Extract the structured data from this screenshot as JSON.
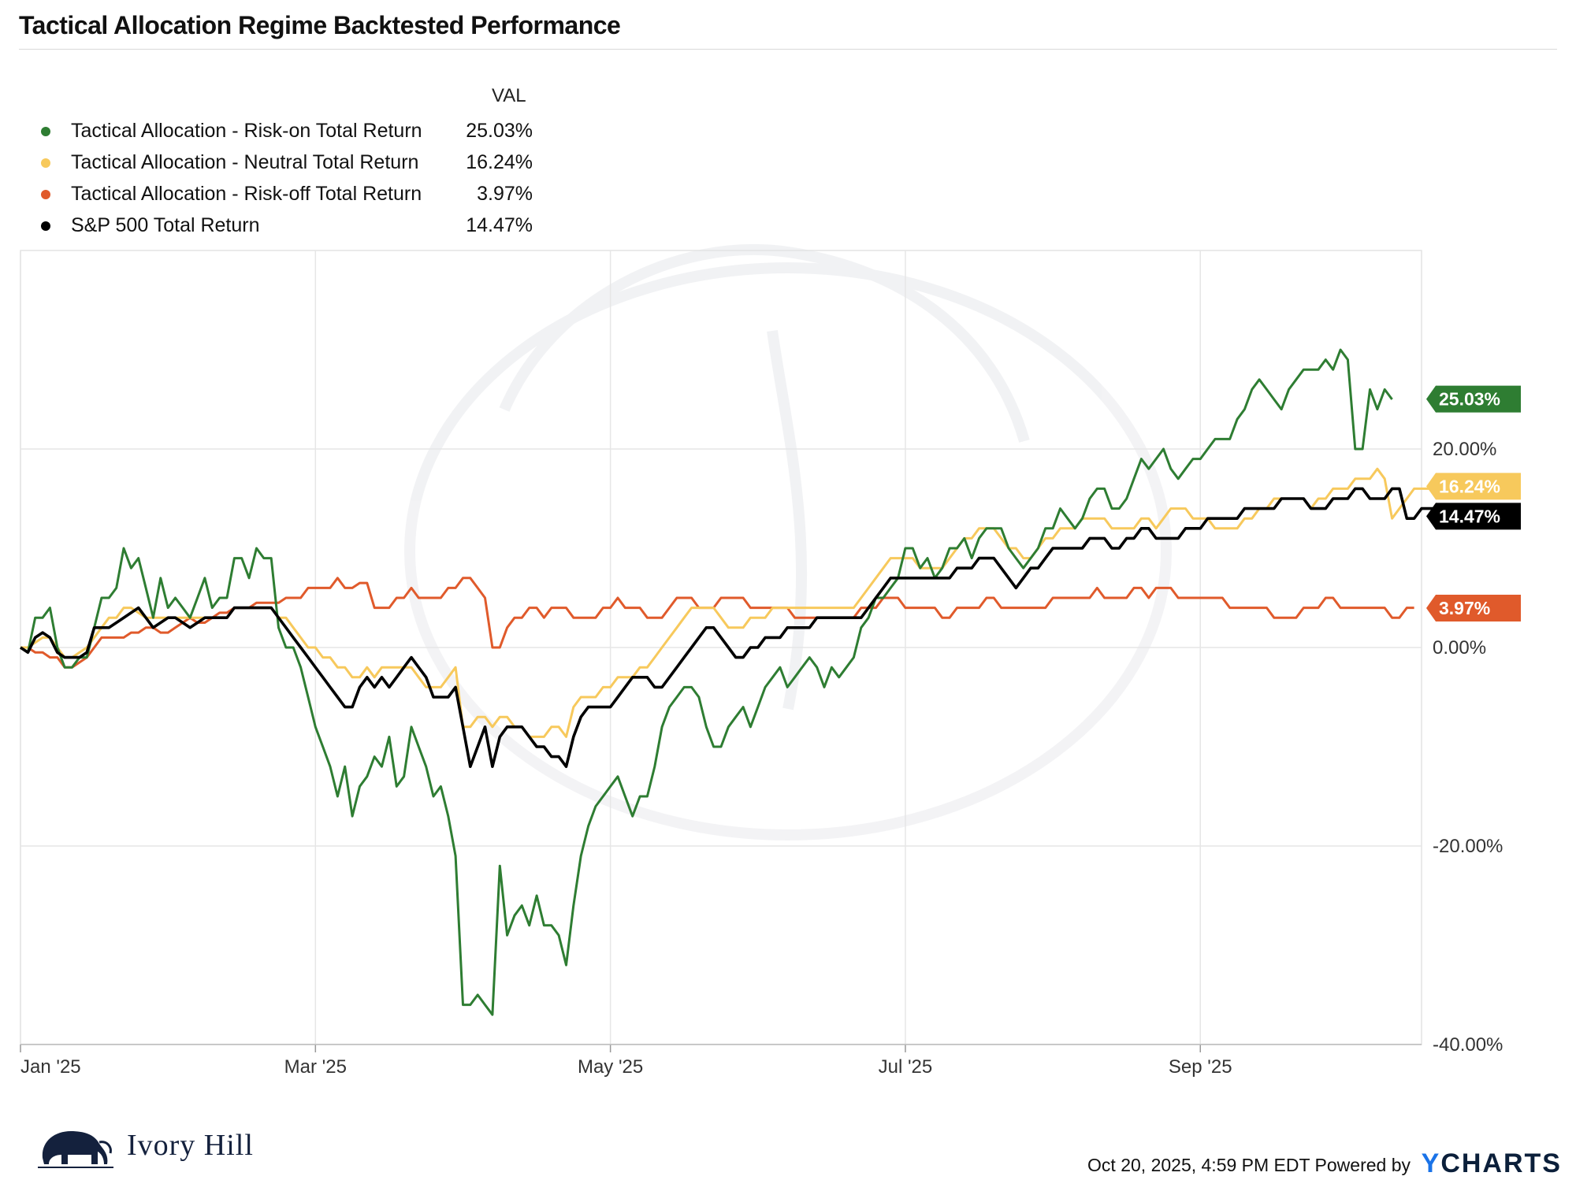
{
  "header": {
    "title": "Tactical Allocation Regime Backtested Performance"
  },
  "legend": {
    "value_header": "VAL",
    "items": [
      {
        "name": "Tactical Allocation - Risk-on Total Return",
        "value": "25.03%",
        "color": "#2e7d32"
      },
      {
        "name": "Tactical Allocation - Neutral Total Return",
        "value": "16.24%",
        "color": "#f7c95c"
      },
      {
        "name": "Tactical Allocation - Risk-off Total Return",
        "value": "3.97%",
        "color": "#e05a2b"
      },
      {
        "name": "S&P 500 Total Return",
        "value": "14.47%",
        "color": "#000000"
      }
    ]
  },
  "chart_data": {
    "type": "line",
    "title": "Tactical Allocation Regime Backtested Performance",
    "xlabel": "",
    "ylabel": "",
    "x_ticks": [
      "Jan '25",
      "Mar '25",
      "May '25",
      "Jul '25",
      "Sep '25"
    ],
    "x_tick_index": [
      0,
      40,
      80,
      120,
      160
    ],
    "y_ticks": [
      "-40.00%",
      "-20.00%",
      "0.00%",
      "20.00%"
    ],
    "y_tick_values": [
      -40,
      -20,
      0,
      20
    ],
    "ylim": [
      -40.0,
      40.0
    ],
    "xlim": [
      0,
      190
    ],
    "grid": true,
    "series": [
      {
        "name": "Tactical Allocation - Risk-on Total Return",
        "color": "#2e7d32",
        "end_label": "25.03%",
        "values": [
          0,
          -0.5,
          3,
          3,
          4,
          0,
          -2,
          -2,
          -1,
          -1,
          2,
          5,
          5,
          6,
          10,
          8,
          9,
          6,
          3,
          7,
          4,
          5,
          4,
          3,
          5,
          7,
          4,
          5,
          5,
          9,
          9,
          7,
          10,
          9,
          9,
          2,
          0,
          0,
          -2,
          -5,
          -8,
          -10,
          -12,
          -15,
          -12,
          -17,
          -14,
          -13,
          -11,
          -12,
          -9,
          -14,
          -13,
          -8,
          -10,
          -12,
          -15,
          -14,
          -17,
          -21,
          -36,
          -36,
          -35,
          -36,
          -37,
          -22,
          -29,
          -27,
          -26,
          -28,
          -25,
          -28,
          -28,
          -29,
          -32,
          -26,
          -21,
          -18,
          -16,
          -15,
          -14,
          -13,
          -15,
          -17,
          -15,
          -15,
          -12,
          -8,
          -6,
          -5,
          -4,
          -4,
          -5,
          -8,
          -10,
          -10,
          -8,
          -7,
          -6,
          -8,
          -6,
          -4,
          -3,
          -2,
          -4,
          -3,
          -2,
          -1,
          -2,
          -4,
          -2,
          -3,
          -2,
          -1,
          2,
          3,
          5,
          5,
          6,
          7,
          10,
          10,
          8,
          9,
          7,
          8,
          10,
          10,
          11,
          9,
          11,
          12,
          12,
          12,
          10,
          9,
          8,
          9,
          10,
          12,
          12,
          14,
          13,
          12,
          13,
          15,
          16,
          16,
          14,
          14,
          15,
          17,
          19,
          18,
          19,
          20,
          18,
          17,
          18,
          19,
          19,
          20,
          21,
          21,
          21,
          23,
          24,
          26,
          27,
          26,
          25,
          24,
          26,
          27,
          28,
          28,
          28,
          29,
          28,
          30,
          29,
          20,
          20,
          26,
          24,
          26,
          25
        ]
      },
      {
        "name": "Tactical Allocation - Neutral Total Return",
        "color": "#f7c95c",
        "end_label": "16.24%",
        "values": [
          0,
          0,
          0.5,
          1,
          1,
          0,
          -1,
          -1,
          -0.5,
          0,
          1,
          2,
          3,
          3,
          4,
          4,
          3.5,
          3,
          3,
          3,
          3,
          3,
          3,
          3,
          3,
          3,
          3,
          3,
          3,
          4,
          4,
          4,
          4,
          4,
          4,
          3,
          3,
          2,
          1,
          0,
          0,
          -1,
          -1,
          -2,
          -2,
          -3,
          -3,
          -2,
          -3,
          -2,
          -2,
          -2,
          -2,
          -2,
          -3,
          -4,
          -4,
          -4,
          -3,
          -2,
          -8,
          -8,
          -7,
          -7,
          -8,
          -7,
          -7,
          -8,
          -8,
          -9,
          -9,
          -9,
          -8,
          -8,
          -9,
          -6,
          -5,
          -5,
          -5,
          -4,
          -4,
          -3,
          -3,
          -3,
          -2,
          -2,
          -1,
          0,
          1,
          2,
          3,
          4,
          4,
          4,
          4,
          3,
          2,
          2,
          2,
          3,
          3,
          3,
          4,
          4,
          4,
          4,
          4,
          4,
          4,
          4,
          4,
          4,
          4,
          4,
          5,
          6,
          7,
          8,
          9,
          9,
          9,
          9,
          8,
          8,
          8,
          8,
          9,
          10,
          11,
          11,
          12,
          12,
          12,
          11,
          10,
          10,
          9,
          9,
          10,
          11,
          11,
          12,
          12,
          12,
          13,
          13,
          13,
          13,
          12,
          12,
          12,
          12,
          13,
          13,
          12,
          13,
          14,
          14,
          14,
          13,
          13,
          13,
          12,
          12,
          12,
          12,
          13,
          13,
          14,
          14,
          15,
          15,
          15,
          15,
          15,
          14,
          15,
          15,
          16,
          16,
          16,
          17,
          17,
          17,
          18,
          17,
          13,
          14,
          15,
          16,
          16,
          16
        ]
      },
      {
        "name": "Tactical Allocation - Risk-off Total Return",
        "color": "#e05a2b",
        "end_label": "3.97%",
        "values": [
          0,
          0,
          -0.5,
          -0.5,
          -1,
          -1,
          -2,
          -2,
          -1.5,
          -1,
          0,
          1,
          1,
          1,
          1,
          1.5,
          1.5,
          2,
          2,
          1.5,
          1.5,
          2,
          2.5,
          3,
          2.5,
          2.5,
          3,
          3.5,
          3.5,
          4,
          4,
          4,
          4.5,
          4.5,
          4.5,
          4.5,
          5,
          5,
          5,
          6,
          6,
          6,
          6,
          7,
          6,
          6,
          6.5,
          6.5,
          4,
          4,
          4,
          5,
          5,
          6,
          5,
          5,
          5,
          5,
          6,
          6,
          7,
          7,
          6,
          5,
          0,
          0,
          2,
          3,
          3,
          4,
          4,
          3,
          4,
          4,
          4,
          3,
          3,
          3,
          3,
          4,
          4,
          5,
          4,
          4,
          4,
          3,
          3,
          3,
          4,
          5,
          5,
          5,
          4,
          4,
          4,
          5,
          5,
          5,
          5,
          4,
          4,
          4,
          4,
          4,
          4,
          3,
          3,
          3,
          3,
          3,
          3,
          3,
          3,
          3,
          4,
          4,
          4,
          5,
          5,
          5,
          4,
          4,
          4,
          4,
          4,
          3,
          3,
          4,
          4,
          4,
          4,
          5,
          5,
          4,
          4,
          4,
          4,
          4,
          4,
          4,
          5,
          5,
          5,
          5,
          5,
          5,
          6,
          5,
          5,
          5,
          5,
          6,
          6,
          5,
          6,
          6,
          6,
          5,
          5,
          5,
          5,
          5,
          5,
          5,
          4,
          4,
          4,
          4,
          4,
          4,
          3,
          3,
          3,
          3,
          4,
          4,
          4,
          5,
          5,
          4,
          4,
          4,
          4,
          4,
          4,
          4,
          3,
          3,
          4,
          4
        ]
      },
      {
        "name": "S&P 500 Total Return",
        "color": "#000000",
        "end_label": "14.47%",
        "values": [
          0,
          -0.5,
          1,
          1.5,
          1,
          -0.5,
          -1,
          -1,
          -1,
          -0.5,
          2,
          2,
          2,
          2.5,
          3,
          3.5,
          4,
          3,
          2,
          2.5,
          3,
          3,
          2.5,
          2,
          2.5,
          3,
          3,
          3,
          3,
          4,
          4,
          4,
          4,
          4,
          4,
          3,
          2,
          1,
          0,
          -1,
          -2,
          -3,
          -4,
          -5,
          -6,
          -6,
          -4,
          -3,
          -4,
          -3,
          -4,
          -3,
          -2,
          -1,
          -2,
          -3,
          -5,
          -5,
          -5,
          -4,
          -8,
          -12,
          -10,
          -8,
          -12,
          -9,
          -8,
          -8,
          -8,
          -9,
          -10,
          -10,
          -11,
          -11,
          -12,
          -9,
          -7,
          -6,
          -6,
          -6,
          -6,
          -5,
          -4,
          -3,
          -3,
          -3,
          -4,
          -4,
          -3,
          -2,
          -1,
          0,
          1,
          2,
          2,
          1,
          0,
          -1,
          -1,
          0,
          0,
          1,
          1,
          1,
          2,
          2,
          2,
          2,
          3,
          3,
          3,
          3,
          3,
          3,
          3,
          4,
          5,
          6,
          7,
          7,
          7,
          7,
          7,
          7,
          7,
          7,
          7,
          8,
          8,
          8,
          9,
          9,
          9,
          8,
          7,
          6,
          7,
          8,
          8,
          9,
          10,
          10,
          10,
          10,
          10,
          11,
          11,
          11,
          10,
          10,
          11,
          11,
          12,
          12,
          11,
          11,
          11,
          11,
          12,
          12,
          12,
          13,
          13,
          13,
          13,
          13,
          14,
          14,
          14,
          14,
          14,
          15,
          15,
          15,
          15,
          14,
          14,
          14,
          15,
          15,
          15,
          16,
          16,
          15,
          15,
          15,
          16,
          16,
          13,
          13,
          14,
          14,
          14,
          14
        ]
      }
    ]
  },
  "footer": {
    "timestamp": "Oct 20, 2025, 4:59 PM EDT Powered by",
    "brand": "Ivory Hill",
    "powered": "CHARTS",
    "powered_prefix": "Y"
  }
}
